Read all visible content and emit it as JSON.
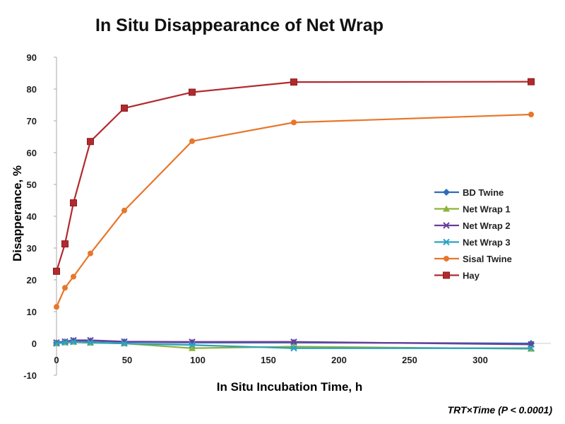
{
  "chart_data": {
    "type": "line",
    "title": "In Situ Disappearance of Net Wrap",
    "xlabel": "In Situ Incubation Time, h",
    "ylabel": "Disapperance, %",
    "annotation": "TRT×Time (P < 0.0001)",
    "xlim": [
      0,
      350
    ],
    "ylim": [
      -10,
      90
    ],
    "xticks": [
      0,
      50,
      100,
      150,
      200,
      250,
      300
    ],
    "yticks": [
      -10,
      0,
      10,
      20,
      30,
      40,
      50,
      60,
      70,
      80,
      90
    ],
    "grid": false,
    "legend": "right",
    "x": [
      0,
      6,
      12,
      24,
      48,
      96,
      168,
      336
    ],
    "series": [
      {
        "name": "BD Twine",
        "color": "#2e6db4",
        "marker": "diamond",
        "values": [
          0.2,
          0.5,
          0.8,
          0.8,
          0.5,
          0.3,
          0.3,
          0.0
        ]
      },
      {
        "name": "Net Wrap 1",
        "color": "#8db33a",
        "marker": "triangle",
        "values": [
          0.0,
          0.3,
          0.5,
          0.2,
          0.0,
          -1.5,
          -1.0,
          -1.7
        ]
      },
      {
        "name": "Net Wrap 2",
        "color": "#6a3d9a",
        "marker": "x",
        "values": [
          0.3,
          0.6,
          1.0,
          1.0,
          0.6,
          0.5,
          0.5,
          -0.3
        ]
      },
      {
        "name": "Net Wrap 3",
        "color": "#2aa3c4",
        "marker": "star",
        "values": [
          0.0,
          0.3,
          0.5,
          0.3,
          0.0,
          -0.5,
          -1.5,
          -1.5
        ]
      },
      {
        "name": "Sisal Twine",
        "color": "#e8762b",
        "marker": "circle",
        "values": [
          11.5,
          17.5,
          21.0,
          28.3,
          41.8,
          63.6,
          69.5,
          72.0
        ]
      },
      {
        "name": "Hay",
        "color": "#b22a2e",
        "marker": "square",
        "values": [
          22.7,
          31.3,
          44.2,
          63.5,
          74.0,
          79.0,
          82.2,
          82.3
        ]
      }
    ]
  }
}
